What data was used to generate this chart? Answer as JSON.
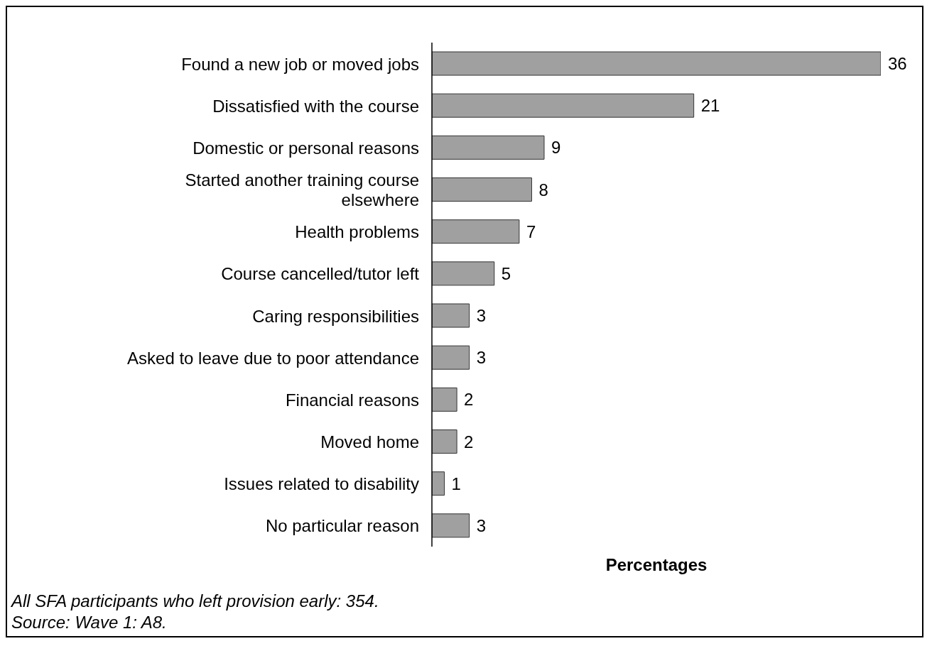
{
  "chart_data": {
    "type": "bar",
    "orientation": "horizontal",
    "categories": [
      "Found a new job or moved jobs",
      "Dissatisfied with the course",
      "Domestic or personal reasons",
      "Started another training course elsewhere",
      "Health problems",
      "Course cancelled/tutor left",
      "Caring responsibilities",
      "Asked to leave due to poor attendance",
      "Financial reasons",
      "Moved home",
      "Issues related to disability",
      "No particular reason"
    ],
    "values": [
      36,
      21,
      9,
      8,
      7,
      5,
      3,
      3,
      2,
      2,
      1,
      3
    ],
    "color": "#a0a0a0",
    "xlim": [
      0,
      36
    ],
    "xlabel": "Percentages",
    "data_labels": true,
    "annotations": [
      "All SFA participants who left provision early: 354.",
      "Source: Wave 1: A8."
    ]
  }
}
